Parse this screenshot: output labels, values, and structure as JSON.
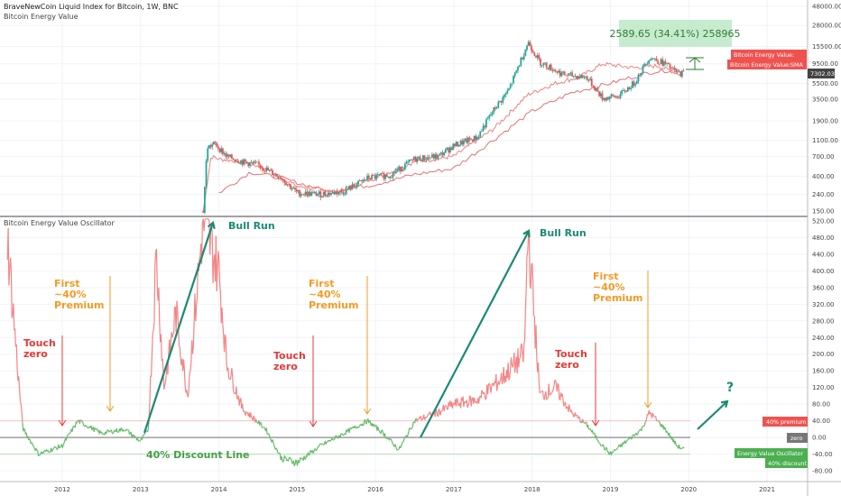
{
  "header": {
    "symbol_line": "BraveNewCoin Liquid Index for Bitcoin, 1W, BNC",
    "series_line": "Bitcoin Energy Value",
    "oscillator_title": "Bitcoin Energy Value Oscillator"
  },
  "measure_box": {
    "text": "2589.65 (34.41%) 258965",
    "bg": "#b9e4c2",
    "fg": "#2e7d32"
  },
  "price_labels": {
    "energy_value": "Bitcoin Energy Value:",
    "energy_value_sma": "Bitcoin Energy Value:SMA",
    "last_price": "7302.03"
  },
  "osc_labels": {
    "premium": "40% premium",
    "zero": "zero",
    "oscillator": "Energy Value Oscillator",
    "discount": "40% discount"
  },
  "annotations": {
    "touch_zero": "Touch zero",
    "first_premium": "First ~40% Premium",
    "bull_run": "Bull Run",
    "discount_line": "40% Discount Line",
    "question": "?"
  },
  "colors": {
    "up": "#26a69a",
    "down": "#ef5350",
    "energy": "#f08080",
    "red_arrow": "#e53935",
    "orange": "#f59a23",
    "teal": "#1a8a74",
    "osc_green": "#66bb6a",
    "osc_red": "#f48484"
  },
  "chart_data": [
    {
      "type": "line",
      "title": "BraveNewCoin Liquid Index for Bitcoin, 1W, BNC",
      "y_scale": "log",
      "y_ticks": [
        150,
        240,
        400,
        700,
        1100,
        1900,
        3500,
        5500,
        9500,
        15500,
        28000,
        48000
      ],
      "x_ticks": [
        "2012",
        "2013",
        "2014",
        "2015",
        "2016",
        "2017",
        "2018",
        "2019",
        "2020",
        "2021"
      ],
      "series": [
        {
          "name": "Bitcoin Energy Value",
          "points": [
            [
              2013.8,
              150
            ],
            [
              2013.9,
              700
            ],
            [
              2014.0,
              650
            ],
            [
              2014.3,
              600
            ],
            [
              2014.6,
              500
            ],
            [
              2015.0,
              300
            ],
            [
              2015.5,
              260
            ],
            [
              2016.0,
              380
            ],
            [
              2016.5,
              600
            ],
            [
              2017.0,
              700
            ],
            [
              2017.5,
              1500
            ],
            [
              2017.95,
              4000
            ],
            [
              2018.3,
              5500
            ],
            [
              2018.6,
              6500
            ],
            [
              2018.9,
              9500
            ],
            [
              2019.3,
              8500
            ],
            [
              2019.6,
              9000
            ],
            [
              2019.9,
              7000
            ]
          ]
        },
        {
          "name": "Bitcoin Energy Value:SMA",
          "points": [
            [
              2014.0,
              250
            ],
            [
              2014.4,
              450
            ],
            [
              2014.8,
              380
            ],
            [
              2015.4,
              260
            ],
            [
              2016.0,
              320
            ],
            [
              2016.5,
              420
            ],
            [
              2017.0,
              500
            ],
            [
              2017.5,
              1100
            ],
            [
              2018.0,
              2500
            ],
            [
              2018.5,
              4200
            ],
            [
              2019.0,
              5500
            ],
            [
              2019.5,
              7500
            ],
            [
              2019.9,
              8200
            ]
          ]
        }
      ],
      "price_path": [
        [
          2013.8,
          150
        ],
        [
          2013.85,
          900
        ],
        [
          2013.95,
          1000
        ],
        [
          2014.1,
          700
        ],
        [
          2014.3,
          600
        ],
        [
          2014.5,
          550
        ],
        [
          2014.8,
          380
        ],
        [
          2015.0,
          250
        ],
        [
          2015.3,
          240
        ],
        [
          2015.6,
          260
        ],
        [
          2015.9,
          380
        ],
        [
          2016.2,
          420
        ],
        [
          2016.5,
          650
        ],
        [
          2016.8,
          700
        ],
        [
          2017.0,
          950
        ],
        [
          2017.3,
          1200
        ],
        [
          2017.5,
          2500
        ],
        [
          2017.7,
          4500
        ],
        [
          2017.95,
          17500
        ],
        [
          2018.1,
          10000
        ],
        [
          2018.4,
          7000
        ],
        [
          2018.7,
          6500
        ],
        [
          2018.9,
          3600
        ],
        [
          2019.1,
          3800
        ],
        [
          2019.3,
          5500
        ],
        [
          2019.5,
          11500
        ],
        [
          2019.7,
          9500
        ],
        [
          2019.85,
          7300
        ],
        [
          2019.95,
          7302.03
        ]
      ]
    },
    {
      "type": "line",
      "title": "Bitcoin Energy Value Oscillator",
      "y_ticks": [
        -80,
        -40,
        0,
        40,
        80,
        120,
        160,
        200,
        240,
        280,
        320,
        360,
        400,
        440,
        480,
        520
      ],
      "ylim": [
        -100,
        530
      ],
      "reference_lines": [
        {
          "name": "40% premium",
          "value": 40
        },
        {
          "name": "zero",
          "value": 0
        },
        {
          "name": "40% discount",
          "value": -40
        }
      ],
      "series": [
        {
          "name": "Energy Value Oscillator",
          "points": [
            [
              2011.3,
              480
            ],
            [
              2011.45,
              120
            ],
            [
              2011.5,
              20
            ],
            [
              2011.7,
              -40
            ],
            [
              2012.0,
              -20
            ],
            [
              2012.2,
              40
            ],
            [
              2012.5,
              10
            ],
            [
              2012.8,
              20
            ],
            [
              2013.0,
              -10
            ],
            [
              2013.1,
              20
            ],
            [
              2013.2,
              440
            ],
            [
              2013.3,
              120
            ],
            [
              2013.45,
              300
            ],
            [
              2013.6,
              100
            ],
            [
              2013.8,
              520
            ],
            [
              2014.0,
              400
            ],
            [
              2014.1,
              180
            ],
            [
              2014.3,
              70
            ],
            [
              2014.6,
              20
            ],
            [
              2014.8,
              -50
            ],
            [
              2015.0,
              -60
            ],
            [
              2015.3,
              -20
            ],
            [
              2015.6,
              10
            ],
            [
              2015.9,
              40
            ],
            [
              2016.1,
              10
            ],
            [
              2016.3,
              -30
            ],
            [
              2016.5,
              40
            ],
            [
              2016.8,
              60
            ],
            [
              2017.0,
              80
            ],
            [
              2017.3,
              90
            ],
            [
              2017.6,
              140
            ],
            [
              2017.9,
              200
            ],
            [
              2017.95,
              500
            ],
            [
              2018.1,
              100
            ],
            [
              2018.3,
              120
            ],
            [
              2018.5,
              60
            ],
            [
              2018.7,
              30
            ],
            [
              2018.9,
              -20
            ],
            [
              2019.0,
              -40
            ],
            [
              2019.2,
              -10
            ],
            [
              2019.4,
              20
            ],
            [
              2019.5,
              60
            ],
            [
              2019.7,
              20
            ],
            [
              2019.85,
              -20
            ],
            [
              2019.95,
              -30
            ]
          ]
        }
      ]
    }
  ]
}
